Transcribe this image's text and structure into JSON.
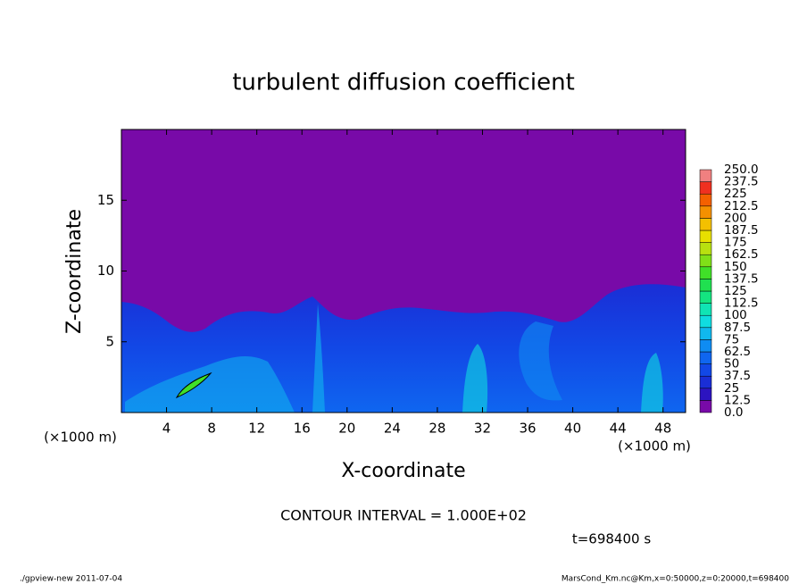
{
  "chart_data": {
    "type": "contour",
    "title": "turbulent diffusion coefficient",
    "xlabel": "X-coordinate",
    "ylabel": "Z-coordinate",
    "x_unit": "(×1000 m)",
    "y_unit": "(×1000 m)",
    "xlim": [
      0,
      50
    ],
    "ylim": [
      0,
      20
    ],
    "xticks": [
      4,
      8,
      12,
      16,
      20,
      24,
      28,
      32,
      36,
      40,
      44,
      48
    ],
    "yticks": [
      5,
      10,
      15
    ],
    "levels": [
      {
        "value": 0,
        "label": "0.0"
      },
      12.5,
      25,
      37.5,
      50,
      62.5,
      75,
      87.5,
      100,
      112.5,
      125,
      137.5,
      150,
      162.5,
      175,
      187.5,
      200,
      212.5,
      225,
      237.5,
      {
        "value": 250,
        "label": "250.0"
      }
    ],
    "colors": [
      "#780aa8",
      "#2c14c0",
      "#1a2ed6",
      "#1248e6",
      "#0f66f0",
      "#0f8cf2",
      "#10b8ee",
      "#10dce0",
      "#10e4b4",
      "#14e480",
      "#20e050",
      "#40e028",
      "#80e018",
      "#b8e010",
      "#e8e000",
      "#f4c000",
      "#f49000",
      "#f46000",
      "#f03020",
      "#f08080"
    ],
    "annotation": "CONTOUR INTERVAL = 1.000E+02",
    "time_label": "t=698400 s",
    "footer_left": "./gpview-new  2011-07-04",
    "footer_right": "MarsCond_Km.nc@Km,x=0:50000,z=0:20000,t=698400"
  }
}
